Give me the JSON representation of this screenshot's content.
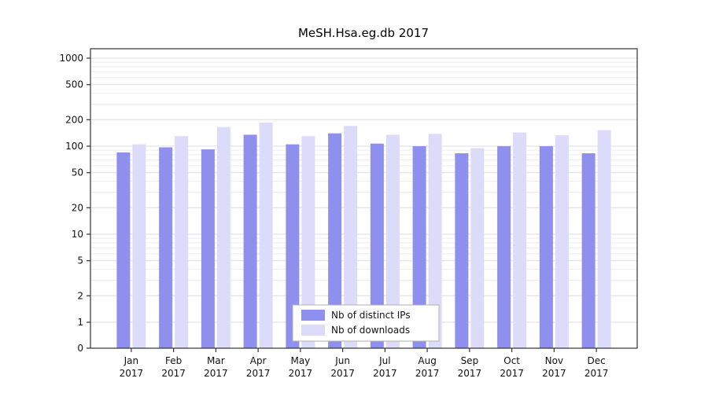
{
  "chart_data": {
    "type": "bar",
    "title": "MeSH.Hsa.eg.db 2017",
    "scale": "log",
    "grid": true,
    "legend_position": "bottom-center",
    "categories": [
      "Jan",
      "Feb",
      "Mar",
      "Apr",
      "May",
      "Jun",
      "Jul",
      "Aug",
      "Sep",
      "Oct",
      "Nov",
      "Dec"
    ],
    "year": "2017",
    "series": [
      {
        "name": "Nb of distinct IPs",
        "color": "#8f8fee",
        "values": [
          85,
          97,
          92,
          135,
          105,
          140,
          107,
          100,
          83,
          100,
          100,
          83
        ]
      },
      {
        "name": "Nb of downloads",
        "color": "#dcdcfa",
        "values": [
          105,
          130,
          165,
          185,
          130,
          170,
          135,
          138,
          95,
          143,
          133,
          152
        ]
      }
    ],
    "yticks": [
      0,
      1,
      2,
      5,
      10,
      20,
      50,
      100,
      200,
      500,
      1000
    ],
    "ylim": [
      0,
      1000
    ],
    "colors": {
      "grid_major": "#dedede",
      "grid_minor": "#ededed",
      "plot_border": "#333333",
      "legend_border": "#b0b0b0",
      "legend_bg": "#ffffff"
    }
  }
}
